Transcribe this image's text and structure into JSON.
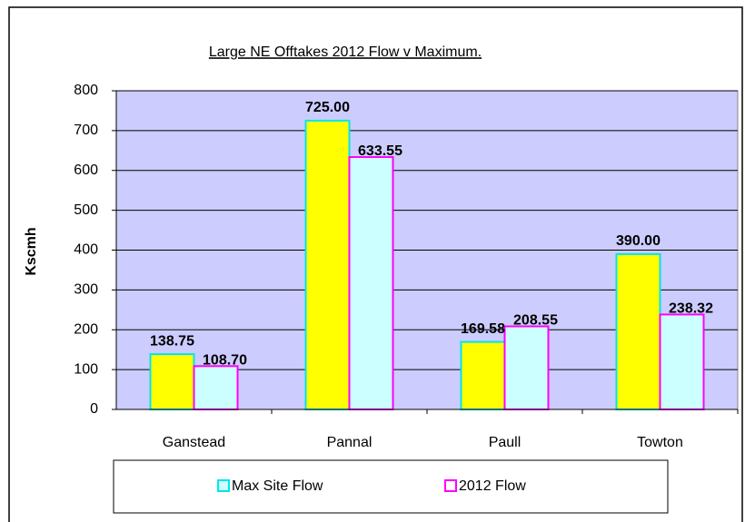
{
  "chart_data": {
    "type": "bar",
    "title": "Large NE Offtakes 2012 Flow v Maximum.",
    "y_label": "Kscmh",
    "categories": [
      "Ganstead",
      "Pannal",
      "Paull",
      "Towton"
    ],
    "series": [
      {
        "name": "Max Site Flow",
        "color": "#ffff00",
        "border_color": "#00e5ee",
        "label_color": "#2b2bff",
        "values": [
          138.75,
          725,
          169.58,
          390
        ],
        "value_labels": [
          "138.75",
          "725.00",
          "169.58",
          "390.00"
        ]
      },
      {
        "name": "2012 Flow",
        "color": "#ccffff",
        "border_color": "#ff00ff",
        "label_color": "#000000",
        "values": [
          108.7,
          633.55,
          208.55,
          238.32
        ],
        "value_labels": [
          "108.70",
          "633.55",
          "208.55",
          "238.32"
        ]
      }
    ],
    "ylim": [
      0,
      800
    ],
    "yticks": [
      0,
      100,
      200,
      300,
      400,
      500,
      600,
      700,
      800
    ],
    "grid": true,
    "plot_background": "#ccccff",
    "legend": "bottom"
  }
}
